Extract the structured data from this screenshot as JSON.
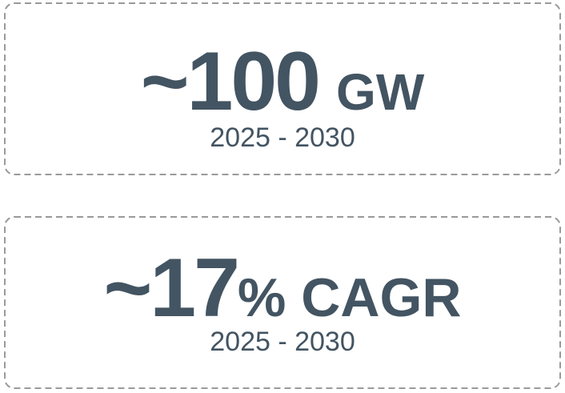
{
  "cards": [
    {
      "value": "~100",
      "unit": "GW",
      "period": "2025 - 2030"
    },
    {
      "value": "~17",
      "unit": "% CAGR",
      "period": "2025 - 2030"
    }
  ]
}
